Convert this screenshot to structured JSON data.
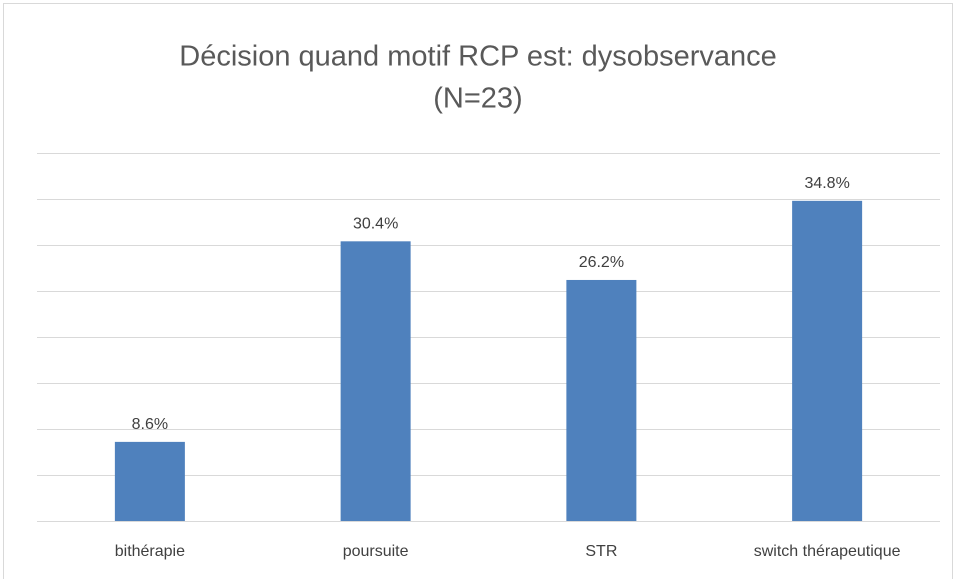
{
  "chart_data": {
    "type": "bar",
    "title": [
      "Décision quand motif RCP est: dysobservance",
      "(N=23)"
    ],
    "categories": [
      "bithérapie",
      "poursuite",
      "STR",
      "switch thérapeutique"
    ],
    "values": [
      8.6,
      30.4,
      26.2,
      34.8
    ],
    "value_labels": [
      "8.6%",
      "30.4%",
      "26.2%",
      "34.8%"
    ],
    "color": "#4f81bd",
    "ylim": [
      0,
      40
    ],
    "yticks": [
      0,
      5,
      10,
      15,
      20,
      25,
      30,
      35,
      40
    ],
    "grid": true
  }
}
